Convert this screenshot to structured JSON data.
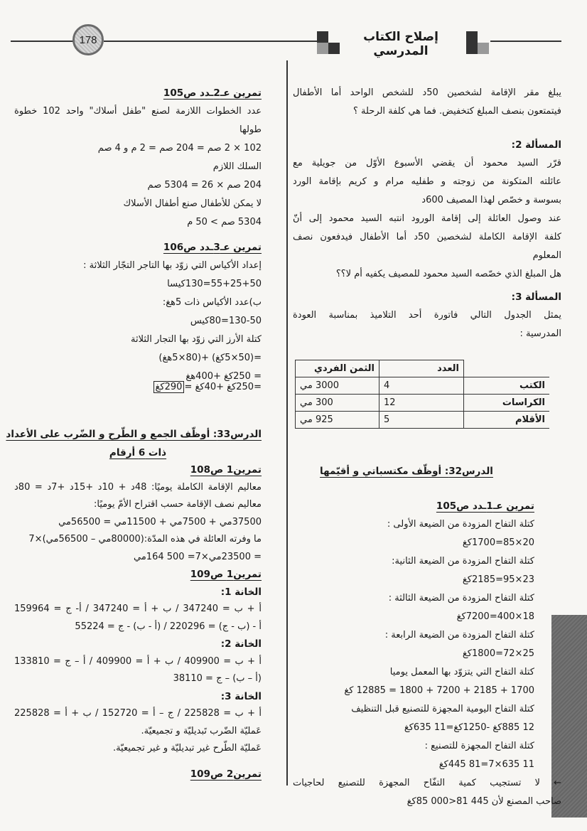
{
  "header": {
    "title": "إصلاح الكتاب المدرسي",
    "page_number": "178",
    "icon": "checkered-squares-icon"
  },
  "right": {
    "intro": [
      "يبلغ مقر الإقامة لشخصين 50د للشخص الواحد أما الأطفال",
      "فيتمتعون بنصف المبلغ كتخفيض. فما هي كلفة الرحلة ؟"
    ],
    "problem2_title": "المسألة 2:",
    "problem2": [
      "قرّر السيد محمود أن يقضي الأسبوع الأوّل من جويلية مع",
      "عائلته المتكونة من زوجته و طفليه مرام و كريم بإقامة الورد",
      "بسوسة و خصّص لهذا المصيف 600د",
      "عند وصول العائلة إلى إقامة الورود انتبه السيد محمود إلى أنّ",
      "كلفة الإقامة الكاملة لشخصين 50د أما الأطفال فيدفعون نصف",
      "المعلوم",
      "هل المبلغ الذي خصّصه السيد محمود للمصيف يكفيه أم لا؟؟"
    ],
    "problem3_title": "المسألة 3:",
    "problem3": [
      "يمثل الجدول التالي فاتورة أحد التلاميذ بمناسبة العودة",
      "المدرسية :"
    ],
    "table": {
      "headers": [
        "العدد",
        "الثمن الفردي"
      ],
      "rows": [
        {
          "item": "الكتب",
          "count": "4",
          "price": "3000 مي"
        },
        {
          "item": "الكراسات",
          "count": "12",
          "price": "300 مي"
        },
        {
          "item": "الأقلام",
          "count": "5",
          "price": "925 مي"
        }
      ]
    },
    "lesson32_title": "الدرس32: أوظّف مكتسباتي و أقيّمها",
    "ex105_1_title": "تمرين عـ1ـدد ص105",
    "ex105_1": [
      "كتلة التفاح المزودة من الضيعة الأولى :",
      "20×85=1700كغ",
      "كتلة التفاح المزودة من الضيعة الثانية:",
      "23×95=2185كغ",
      "كتلة التفاح المزودة من الضيعة الثالثة :",
      "18×400=7200كغ",
      "كتلة التفاح المزودة من الضيعة الرابعة :",
      "25×72=1800كغ",
      "كتلة التفاح التي يتزوّد بها المعمل يوميا",
      "1700 + 2185 + 7200 + 1800 = 12885 كغ",
      "كتلة التفاح اليومية المجهزة للتصنيع قبل التنظيف",
      "12 885كغ -1250كغ=11 635كغ",
      "كتلة التفاح المجهزة للتصنيع :",
      "11 635×7=81 445كغ"
    ],
    "ex105_1_conclusion": [
      "← لا تستجيب كمية التفّاح المجهزة للتصنيع لحاجيات",
      "صاحب المصنع لأن 445 81<000 85كغ"
    ]
  },
  "left": {
    "ex105_2_title": "تمرين عـ2ـدد ص105",
    "ex105_2": [
      "عدد الخطوات اللازمة لصنع \"طفل أسلاك\" واحد 102 خطوة",
      "طولها",
      "102 × 2 صم = 204 صم = 2 م و 4 صم",
      "السلك اللازم",
      "204 صم × 26 = 5304 صم",
      "لا يمكن للأطفال صنع أطفال الأسلاك",
      "5304 صم > 50 م"
    ],
    "ex106_title": "تمرين عـ3ـدد ص106",
    "ex106": [
      "إعداد الأكياس التي زوّد بها التاجر التجّار الثلاثة :",
      "55+25+50=130كيسا",
      "ب)عدد الأكياس ذات 5هغ:",
      "130-50=80كيس",
      "كتلة الأرز التي زوّد بها التجار الثلاثة",
      "=(50×5كغ) +(80×5هغ)",
      "= 250كغ +400هغ"
    ],
    "ex106_final_prefix": "=250كغ +40كغ =",
    "ex106_final_boxed": "290كغ",
    "lesson33_title": [
      "الدرس33: أوظّف الجمع و الطّرح و الضّرب على الأعداد",
      "ذات 6 أرقام"
    ],
    "ex108_title": "تمرين1 ص108",
    "ex108": [
      "معاليم الإقامة الكاملة يوميًا: 48د + 10د +15د +7د = 80د",
      "معاليم نصف الإقامة حسب اقتراح الأمّ يوميًا:",
      "37500مي + 7500مي + 11500مي = 56500مي",
      "ما وفرته العائلة في هذه المدّة:(80000مي – 56500مي)×7",
      "= 23500مي×7= 500 164مي"
    ],
    "ex109_1_title": "تمرين1 ص109",
    "cell1_title": "الخانة 1:",
    "cell1": [
      "أ + ب = 347240 / ب + أ = 347240 / أ- ج = 159964",
      "أ - (ب - ج) = 220296 / (أ - ب) - ج = 55224"
    ],
    "cell2_title": "الخانة 2:",
    "cell2": [
      "أ + ب = 409900 / ب + أ = 409900 / أ – ج = 133810",
      "(أ – ب) – ج = 38110"
    ],
    "cell3_title": "الخانة 3:",
    "cell3": [
      "أ + ب = 225828 / ج – أ = 152720 / ب + أ = 225828",
      "عَمليّة الضّرب تَبديليّة و تجميعيّة.",
      "عَمليّة الطّرح غير تبديليّة و غير تجميعيّة."
    ],
    "ex109_2_title": "تمرين2 ص109"
  }
}
